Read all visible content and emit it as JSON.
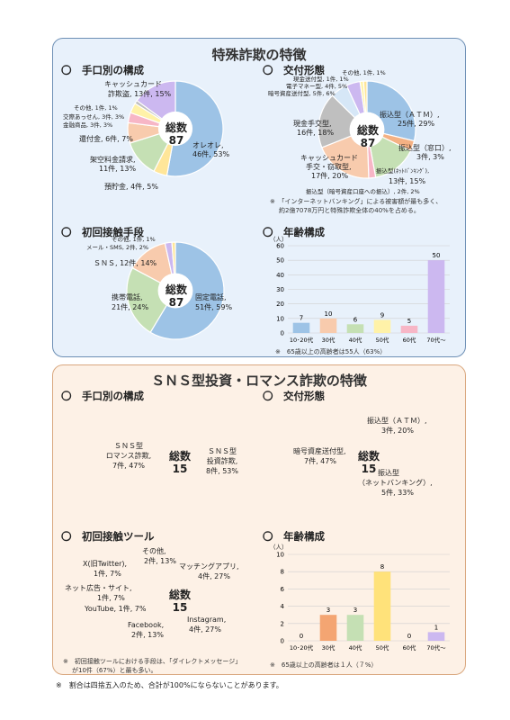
{
  "colors": {
    "blue": "#9dc3e6",
    "green": "#c5e0b4",
    "peach": "#f8cbad",
    "yellow": "#fff2a8",
    "purple": "#ccb8f0",
    "grey": "#bfbfbf",
    "orange": "#f4b183",
    "pink": "#f7b6c6",
    "lightblue": "#d6e7f7",
    "gold": "#ffe699"
  },
  "fraud": {
    "title": "特殊詐欺の特徴",
    "method": {
      "heading": "〇　手口別の構成",
      "center": [
        "総数",
        "87"
      ],
      "labels": [
        "オレオレ,",
        "46件, 53%",
        "預貯金, 4件, 5%",
        "架空料金請求,",
        "11件, 13%",
        "還付金, 6件, 7%",
        "金融商品, 3件, 3%",
        "交際あっせん, 3件, 3%",
        "その他, 1件, 1%",
        "キャッシュカード",
        "詐欺盗, 13件, 15%"
      ]
    },
    "delivery": {
      "heading": "〇　交付形態",
      "center": [
        "総数",
        "87"
      ],
      "labels": [
        "その他, 1件, 1%",
        "現金送付型, 1件, 1%",
        "電子マネー型, 4件, 5%",
        "暗号資産送付型, 5件, 6%",
        "振込型（ＡＴＭ）,",
        "25件, 29%",
        "振込型（窓口）,",
        "3件, 3%",
        "振込型(ﾈｯﾄﾊﾞﾝｷﾝｸﾞ),",
        "13件, 15%",
        "振込型（暗号資産口座への振込）, 2件, 2%",
        "キャッシュカード",
        "手交・窃取型,",
        "17件, 20%",
        "現金手交型,",
        "16件, 18%"
      ],
      "note1": "※　「インターネットバンキング」による被害額が最も多く、",
      "note2": "約2億7078万円と特殊詐欺全体の40%を占める。"
    },
    "contact": {
      "heading": "〇　初回接触手段",
      "center": [
        "総数",
        "87"
      ],
      "labels": [
        "その他, 1件, 1%",
        "メール・SMS, 2件, 2%",
        "ＳＮＳ, 12件, 14%",
        "携帯電話,",
        "21件, 24%",
        "固定電話,",
        "51件, 59%"
      ]
    },
    "age": {
      "heading": "〇　年齢構成",
      "unit": "（人）",
      "yticks": [
        "0",
        "10",
        "20",
        "30",
        "40",
        "50",
        "60"
      ],
      "categories": [
        "10･20代",
        "30代",
        "40代",
        "50代",
        "60代",
        "70代～"
      ],
      "note": "※　65歳以上の高齢者は55人（63%）"
    }
  },
  "sns": {
    "title": "ＳＮＳ型投資・ロマンス詐欺の特徴",
    "method": {
      "heading": "〇　手口別の構成",
      "center": [
        "総数",
        "15"
      ],
      "labels": [
        "ＳＮＳ型",
        "投資詐欺,",
        "8件, 53%",
        "ＳＮＳ型",
        "ロマンス詐欺,",
        "7件, 47%"
      ]
    },
    "delivery": {
      "heading": "〇　交付形態",
      "center": [
        "総数",
        "15"
      ],
      "labels": [
        "振込型（ＡＴＭ）,",
        "3件, 20%",
        "振込型",
        "（ネットバンキング）,",
        "5件, 33%",
        "暗号資産送付型,",
        "7件, 47%"
      ]
    },
    "contact": {
      "heading": "〇　初回接触ツール",
      "center": [
        "総数",
        "15"
      ],
      "labels": [
        "マッチングアプリ,",
        "4件, 27%",
        "Instagram,",
        "4件, 27%",
        "Facebook,",
        "2件, 13%",
        "YouTube, 1件, 7%",
        "ネット広告・サイト,",
        "1件, 7%",
        "X(旧Twitter),",
        "1件, 7%",
        "その他,",
        "2件, 13%"
      ],
      "note1": "※　初回接触ツールにおける手段は、「ダイレクトメッセージ」",
      "note2": "が10件（67%）と最も多い。"
    },
    "age": {
      "heading": "〇　年齢構成",
      "unit": "（人）",
      "yticks": [
        "0",
        "2",
        "4",
        "6",
        "8",
        "10"
      ],
      "categories": [
        "10･20代",
        "30代",
        "40代",
        "50代",
        "60代",
        "70代～"
      ],
      "note": "※　65歳以上の高齢者は１人（７%）"
    }
  },
  "footer": "※　割合は四捨五入のため、合計が100%にならないことがあります。",
  "chart_data": [
    {
      "type": "pie",
      "name": "手口別の構成（特殊詐欺）",
      "categories": [
        "オレオレ",
        "預貯金",
        "架空料金請求",
        "還付金",
        "金融商品",
        "交際あっせん",
        "その他",
        "キャッシュカード詐欺盗"
      ],
      "values": [
        46,
        4,
        11,
        6,
        3,
        3,
        1,
        13
      ]
    },
    {
      "type": "pie",
      "name": "交付形態（特殊詐欺）",
      "categories": [
        "振込型（ＡＴＭ）",
        "振込型（窓口）",
        "振込型(ﾈｯﾄﾊﾞﾝｷﾝｸﾞ)",
        "振込型（暗号資産口座への振込）",
        "キャッシュカード手交・窃取型",
        "現金手交型",
        "暗号資産送付型",
        "電子マネー型",
        "現金送付型",
        "その他"
      ],
      "values": [
        25,
        3,
        13,
        2,
        17,
        16,
        5,
        4,
        1,
        1
      ]
    },
    {
      "type": "pie",
      "name": "初回接触手段（特殊詐欺）",
      "categories": [
        "固定電話",
        "携帯電話",
        "ＳＮＳ",
        "メール・SMS",
        "その他"
      ],
      "values": [
        51,
        21,
        12,
        2,
        1
      ]
    },
    {
      "type": "bar",
      "name": "年齢構成（特殊詐欺）",
      "categories": [
        "10･20代",
        "30代",
        "40代",
        "50代",
        "60代",
        "70代～"
      ],
      "values": [
        7,
        10,
        6,
        9,
        5,
        50
      ],
      "ylim": [
        0,
        60
      ]
    },
    {
      "type": "pie",
      "name": "手口別の構成（ＳＮＳ型）",
      "categories": [
        "ＳＮＳ型投資詐欺",
        "ＳＮＳ型ロマンス詐欺"
      ],
      "values": [
        8,
        7
      ]
    },
    {
      "type": "pie",
      "name": "交付形態（ＳＮＳ型）",
      "categories": [
        "振込型（ＡＴＭ）",
        "振込型（ネットバンキング）",
        "暗号資産送付型"
      ],
      "values": [
        3,
        5,
        7
      ]
    },
    {
      "type": "pie",
      "name": "初回接触ツール（ＳＮＳ型）",
      "categories": [
        "マッチングアプリ",
        "Instagram",
        "Facebook",
        "YouTube",
        "ネット広告・サイト",
        "X(旧Twitter)",
        "その他"
      ],
      "values": [
        4,
        4,
        2,
        1,
        1,
        1,
        2
      ]
    },
    {
      "type": "bar",
      "name": "年齢構成（ＳＮＳ型）",
      "categories": [
        "10･20代",
        "30代",
        "40代",
        "50代",
        "60代",
        "70代～"
      ],
      "values": [
        0,
        3,
        3,
        8,
        0,
        1
      ],
      "ylim": [
        0,
        10
      ]
    }
  ]
}
